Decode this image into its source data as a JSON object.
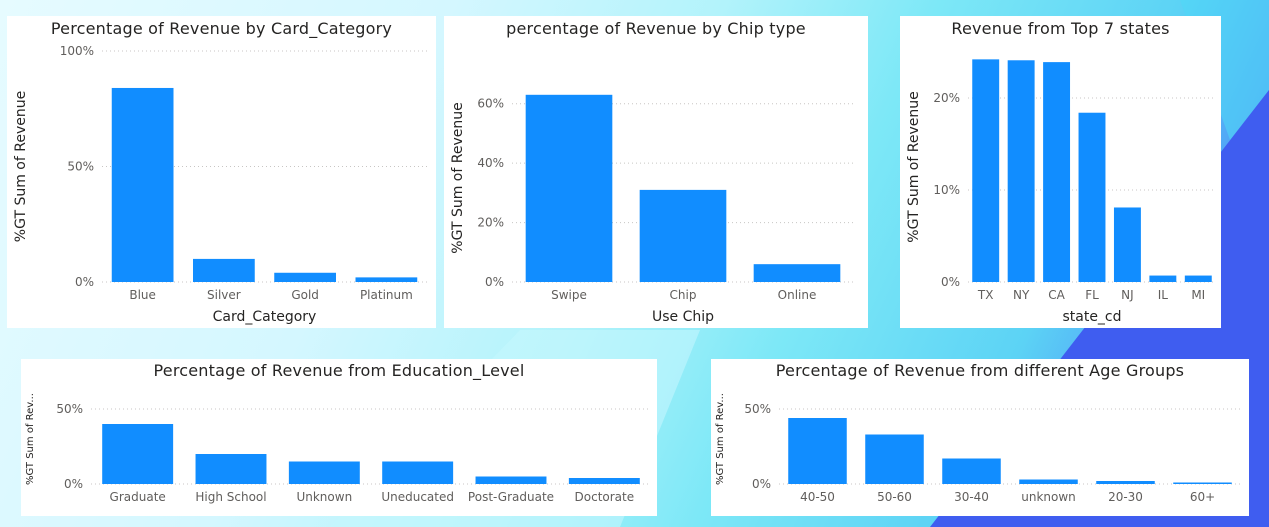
{
  "colors": {
    "bar": "#118dff",
    "panel": "#ffffff"
  },
  "chart_data": [
    {
      "type": "bar",
      "title": "Percentage of Revenue by Card_Category",
      "xlabel": "Card_Category",
      "ylabel": "%GT Sum of Revenue",
      "categories": [
        "Blue",
        "Silver",
        "Gold",
        "Platinum"
      ],
      "values": [
        84,
        10,
        4,
        2
      ],
      "ylim": [
        0,
        100
      ],
      "yticks": [
        0,
        50,
        100
      ],
      "ytick_labels": [
        "0%",
        "50%",
        "100%"
      ],
      "grid": true
    },
    {
      "type": "bar",
      "title": "percentage of Revenue by Chip type",
      "xlabel": "Use Chip",
      "ylabel": "%GT Sum of Revenue",
      "categories": [
        "Swipe",
        "Chip",
        "Online"
      ],
      "values": [
        63,
        31,
        6
      ],
      "ylim": [
        0,
        70
      ],
      "yticks": [
        0,
        20,
        40,
        60
      ],
      "ytick_labels": [
        "0%",
        "20%",
        "40%",
        "60%"
      ],
      "grid": true
    },
    {
      "type": "bar",
      "title": "Revenue from Top 7 states",
      "xlabel": "state_cd",
      "ylabel": "%GT Sum of Revenue",
      "categories": [
        "TX",
        "NY",
        "CA",
        "FL",
        "NJ",
        "IL",
        "MI"
      ],
      "values": [
        24.2,
        24.1,
        23.9,
        18.4,
        8.1,
        0.7,
        0.7
      ],
      "ylim": [
        0,
        25
      ],
      "yticks": [
        0,
        10,
        20
      ],
      "ytick_labels": [
        "0%",
        "10%",
        "20%"
      ],
      "grid": true
    },
    {
      "type": "bar",
      "title": "Percentage of Revenue from Education_Level",
      "xlabel": "",
      "ylabel": "%GT Sum of Rev...",
      "categories": [
        "Graduate",
        "High School",
        "Unknown",
        "Uneducated",
        "Post-Graduate",
        "Doctorate"
      ],
      "values": [
        40,
        20,
        15,
        15,
        5,
        4
      ],
      "ylim": [
        0,
        60
      ],
      "yticks": [
        0,
        50
      ],
      "ytick_labels": [
        "0%",
        "50%"
      ],
      "grid": true
    },
    {
      "type": "bar",
      "title": "Percentage of Revenue from different Age Groups",
      "xlabel": "",
      "ylabel": "%GT Sum of Rev...",
      "categories": [
        "40-50",
        "50-60",
        "30-40",
        "unknown",
        "20-30",
        "60+"
      ],
      "values": [
        44,
        33,
        17,
        3,
        2,
        1
      ],
      "ylim": [
        0,
        60
      ],
      "yticks": [
        0,
        50
      ],
      "ytick_labels": [
        "0%",
        "50%"
      ],
      "grid": true
    }
  ]
}
